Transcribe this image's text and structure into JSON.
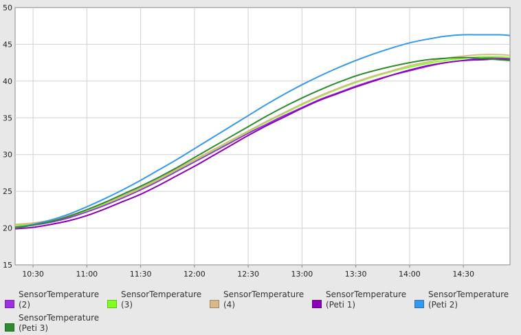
{
  "chart_data": {
    "type": "line",
    "title": "",
    "xlabel": "",
    "ylabel": "",
    "xlim": [
      "10:20",
      "14:56"
    ],
    "ylim": [
      15,
      50
    ],
    "x_ticks": [
      "10:30",
      "11:00",
      "11:30",
      "12:00",
      "12:30",
      "13:00",
      "13:30",
      "14:00",
      "14:30"
    ],
    "y_ticks": [
      "15",
      "20",
      "25",
      "30",
      "35",
      "40",
      "45",
      "50"
    ],
    "grid": true,
    "legend_position": "bottom",
    "x": [
      "10:20",
      "10:30",
      "10:40",
      "10:50",
      "11:00",
      "11:10",
      "11:20",
      "11:30",
      "11:40",
      "11:50",
      "12:00",
      "12:10",
      "12:20",
      "12:30",
      "12:40",
      "12:50",
      "13:00",
      "13:10",
      "13:20",
      "13:30",
      "13:40",
      "13:50",
      "14:00",
      "14:10",
      "14:20",
      "14:30",
      "14:40",
      "14:50",
      "14:56"
    ],
    "series": [
      {
        "name": "SensorTemperature (2)",
        "color": "#9b30e0",
        "values": [
          20.2,
          20.4,
          20.8,
          21.4,
          22.2,
          23.1,
          24.1,
          25.2,
          26.4,
          27.7,
          29.0,
          30.3,
          31.6,
          32.9,
          34.1,
          35.3,
          36.4,
          37.5,
          38.4,
          39.3,
          40.1,
          40.8,
          41.4,
          42.0,
          42.5,
          42.8,
          43.1,
          43.2,
          43.2
        ]
      },
      {
        "name": "SensorTemperature (3)",
        "color": "#80ff20",
        "values": [
          20.3,
          20.6,
          21.0,
          21.6,
          22.4,
          23.3,
          24.3,
          25.4,
          26.6,
          27.9,
          29.2,
          30.5,
          31.8,
          33.1,
          34.4,
          35.6,
          36.8,
          37.9,
          38.9,
          39.8,
          40.6,
          41.3,
          41.9,
          42.4,
          42.8,
          43.1,
          43.3,
          43.3,
          43.2
        ]
      },
      {
        "name": "SensorTemperature (4)",
        "color": "#d8b888",
        "values": [
          20.5,
          20.7,
          21.1,
          21.7,
          22.5,
          23.4,
          24.4,
          25.5,
          26.7,
          28.0,
          29.3,
          30.6,
          31.9,
          33.2,
          34.5,
          35.7,
          36.9,
          38.0,
          39.0,
          39.9,
          40.7,
          41.4,
          42.1,
          42.6,
          43.1,
          43.4,
          43.6,
          43.6,
          43.5
        ]
      },
      {
        "name": "SensorTemperature (Peti 1)",
        "color": "#8a00b8",
        "values": [
          19.9,
          20.1,
          20.5,
          21.0,
          21.7,
          22.6,
          23.6,
          24.6,
          25.8,
          27.1,
          28.4,
          29.8,
          31.2,
          32.6,
          33.9,
          35.1,
          36.3,
          37.4,
          38.3,
          39.2,
          40.0,
          40.8,
          41.5,
          42.1,
          42.5,
          42.8,
          42.9,
          43.0,
          43.0
        ]
      },
      {
        "name": "SensorTemperature (Peti 2)",
        "color": "#3399ee",
        "values": [
          20.0,
          20.5,
          21.1,
          21.9,
          22.9,
          24.0,
          25.2,
          26.5,
          27.9,
          29.3,
          30.8,
          32.3,
          33.8,
          35.3,
          36.8,
          38.2,
          39.5,
          40.7,
          41.8,
          42.8,
          43.7,
          44.5,
          45.2,
          45.7,
          46.1,
          46.3,
          46.3,
          46.3,
          46.2
        ]
      },
      {
        "name": "SensorTemperature (Peti 3)",
        "color": "#2e8b2e",
        "values": [
          20.0,
          20.4,
          20.9,
          21.6,
          22.5,
          23.5,
          24.6,
          25.7,
          26.9,
          28.2,
          29.6,
          31.0,
          32.4,
          33.8,
          35.2,
          36.5,
          37.7,
          38.8,
          39.8,
          40.7,
          41.4,
          42.0,
          42.5,
          42.9,
          43.1,
          43.2,
          43.1,
          42.9,
          42.8
        ]
      }
    ]
  }
}
